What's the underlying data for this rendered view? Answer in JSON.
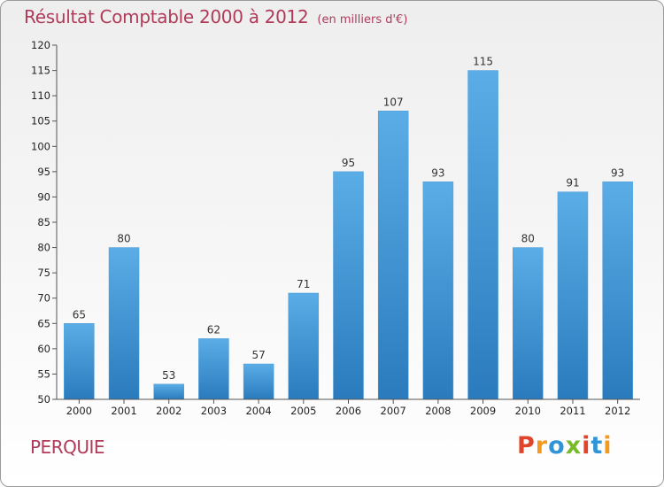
{
  "header": {
    "title": "Résultat Comptable 2000 à 2012",
    "subtitle": "(en milliers d'€)"
  },
  "footer": {
    "place": "PERQUIE",
    "logo_text": "Proxiti"
  },
  "colors": {
    "title": "#b03a5a",
    "bar_top": "#5aade6",
    "bar_bottom": "#2a7bbd",
    "axis": "#555555"
  },
  "chart_data": {
    "type": "bar",
    "title": "Résultat Comptable 2000 à 2012",
    "subtitle": "(en milliers d'€)",
    "xlabel": "",
    "ylabel": "",
    "categories": [
      "2000",
      "2001",
      "2002",
      "2003",
      "2004",
      "2005",
      "2006",
      "2007",
      "2008",
      "2009",
      "2010",
      "2011",
      "2012"
    ],
    "values": [
      65,
      80,
      53,
      62,
      57,
      71,
      95,
      107,
      93,
      115,
      80,
      91,
      93
    ],
    "ylim": [
      50,
      120
    ],
    "yticks": [
      50,
      55,
      60,
      65,
      70,
      75,
      80,
      85,
      90,
      95,
      100,
      105,
      110,
      115,
      120
    ],
    "grid": false,
    "data_labels": true
  }
}
